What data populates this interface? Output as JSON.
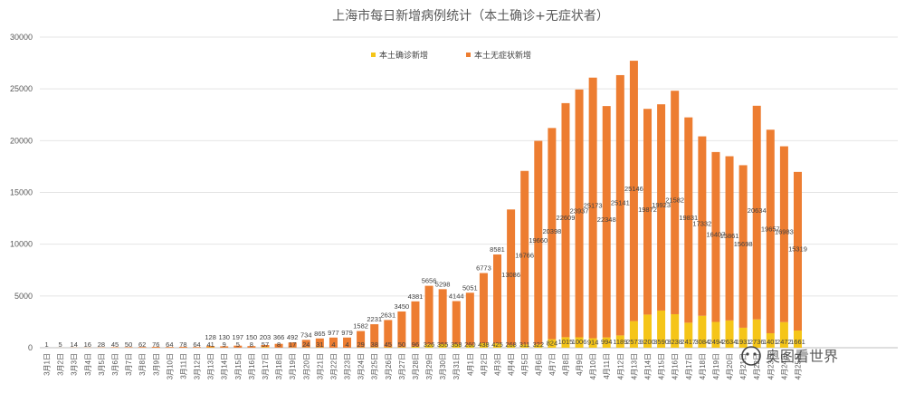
{
  "chart_data": {
    "type": "bar",
    "stacked": true,
    "title": "上海市每日新增病例统计（本土确诊+无症状者）",
    "xlabel": "",
    "ylabel": "",
    "ylim": [
      0,
      30000
    ],
    "yticks": [
      0,
      5000,
      10000,
      15000,
      20000,
      25000,
      30000
    ],
    "grid": true,
    "legend_position": "top-right",
    "categories": [
      "3月1日",
      "3月2日",
      "3月3日",
      "3月4日",
      "3月5日",
      "3月6日",
      "3月7日",
      "3月8日",
      "3月9日",
      "3月10日",
      "3月11日",
      "3月12日",
      "3月13日",
      "3月14日",
      "3月15日",
      "3月16日",
      "3月17日",
      "3月18日",
      "3月19日",
      "3月20日",
      "3月21日",
      "3月22日",
      "3月23日",
      "3月24日",
      "3月25日",
      "3月26日",
      "3月27日",
      "3月28日",
      "3月29日",
      "3月30日",
      "3月31日",
      "4月1日",
      "4月2日",
      "4月3日",
      "4月4日",
      "4月5日",
      "4月6日",
      "4月7日",
      "4月8日",
      "4月9日",
      "4月10日",
      "4月11日",
      "4月12日",
      "4月13日",
      "4月14日",
      "4月15日",
      "4月16日",
      "4月17日",
      "4月18日",
      "4月19日",
      "4月20日",
      "4月21日",
      "4月22日",
      "4月23日",
      "4月24日",
      "4月25日"
    ],
    "series": [
      {
        "name": "本土确诊新增",
        "color": "#F5C518",
        "values": [
          0,
          0,
          3,
          2,
          3,
          0,
          3,
          0,
          4,
          5,
          5,
          1,
          41,
          9,
          5,
          8,
          57,
          8,
          17,
          24,
          31,
          4,
          4,
          29,
          38,
          45,
          50,
          96,
          326,
          355,
          358,
          260,
          438,
          425,
          268,
          311,
          322,
          824,
          1015,
          1006,
          914,
          994,
          1189,
          2573,
          3200,
          3590,
          3238,
          2417,
          3084,
          2494,
          2634,
          1931,
          2736,
          1401,
          2472,
          1661
        ]
      },
      {
        "name": "本土无症状新增",
        "color": "#ED7D31",
        "values": [
          1,
          5,
          14,
          16,
          28,
          45,
          50,
          62,
          76,
          64,
          78,
          64,
          128,
          130,
          197,
          150,
          203,
          366,
          492,
          734,
          865,
          977,
          979,
          1582,
          2231,
          2631,
          3450,
          4381,
          5656,
          5298,
          4144,
          5051,
          6773,
          8581,
          13086,
          16766,
          19660,
          20398,
          22609,
          23937,
          25173,
          22348,
          25141,
          25146,
          19872,
          19923,
          21582,
          19831,
          17332,
          16407,
          15861,
          15698,
          20634,
          19657,
          16983,
          15319
        ]
      }
    ],
    "data_labels": {
      "confirmed": [
        "",
        "",
        "",
        "",
        "",
        "",
        "",
        "",
        "",
        "",
        "",
        "",
        "",
        "",
        "",
        "",
        "",
        "",
        "",
        "",
        "",
        "",
        "",
        "",
        "",
        "",
        "",
        "",
        "",
        "",
        "",
        "",
        "",
        "",
        "",
        "",
        "",
        "824",
        "1015",
        "1006",
        "914",
        "994",
        "1189",
        "2573",
        "3200",
        "3590",
        "3238",
        "2417",
        "3084",
        "2494",
        "2634",
        "1931",
        "2736",
        "1401",
        "2472",
        "1661"
      ],
      "bottom": [
        "1",
        "5",
        "14",
        "16",
        "28",
        "45",
        "50",
        "62",
        "76",
        "64",
        "78",
        "64",
        "41",
        "9",
        "5",
        "8",
        "57",
        "8",
        "17",
        "24",
        "31",
        "4",
        "4",
        "29",
        "38",
        "45",
        "50",
        "96",
        "326",
        "355",
        "358",
        "260",
        "438",
        "425",
        "268",
        "311",
        "322",
        "",
        "",
        "",
        "",
        "",
        "",
        "",
        "",
        "",
        "",
        "",
        "",
        "",
        "",
        "",
        "",
        "",
        "",
        ""
      ],
      "asymptomatic": [
        "",
        "",
        "",
        "",
        "",
        "",
        "",
        "",
        "",
        "",
        "",
        "",
        "128",
        "130",
        "197",
        "150",
        "203",
        "366",
        "492",
        "734",
        "865",
        "977",
        "979",
        "1582",
        "2231",
        "2631",
        "3450",
        "4381",
        "5656",
        "5298",
        "4144",
        "5051",
        "6773",
        "8581",
        "13086",
        "16766",
        "19660",
        "20398",
        "22609",
        "23937",
        "25173",
        "22348",
        "25141",
        "25146",
        "19872",
        "19923",
        "21582",
        "19831",
        "17332",
        "16407",
        "15861",
        "15698",
        "20634",
        "19657",
        "16983",
        "15319"
      ]
    }
  },
  "watermark": {
    "text": "奥图看世界",
    "icon": "wechat-icon"
  }
}
